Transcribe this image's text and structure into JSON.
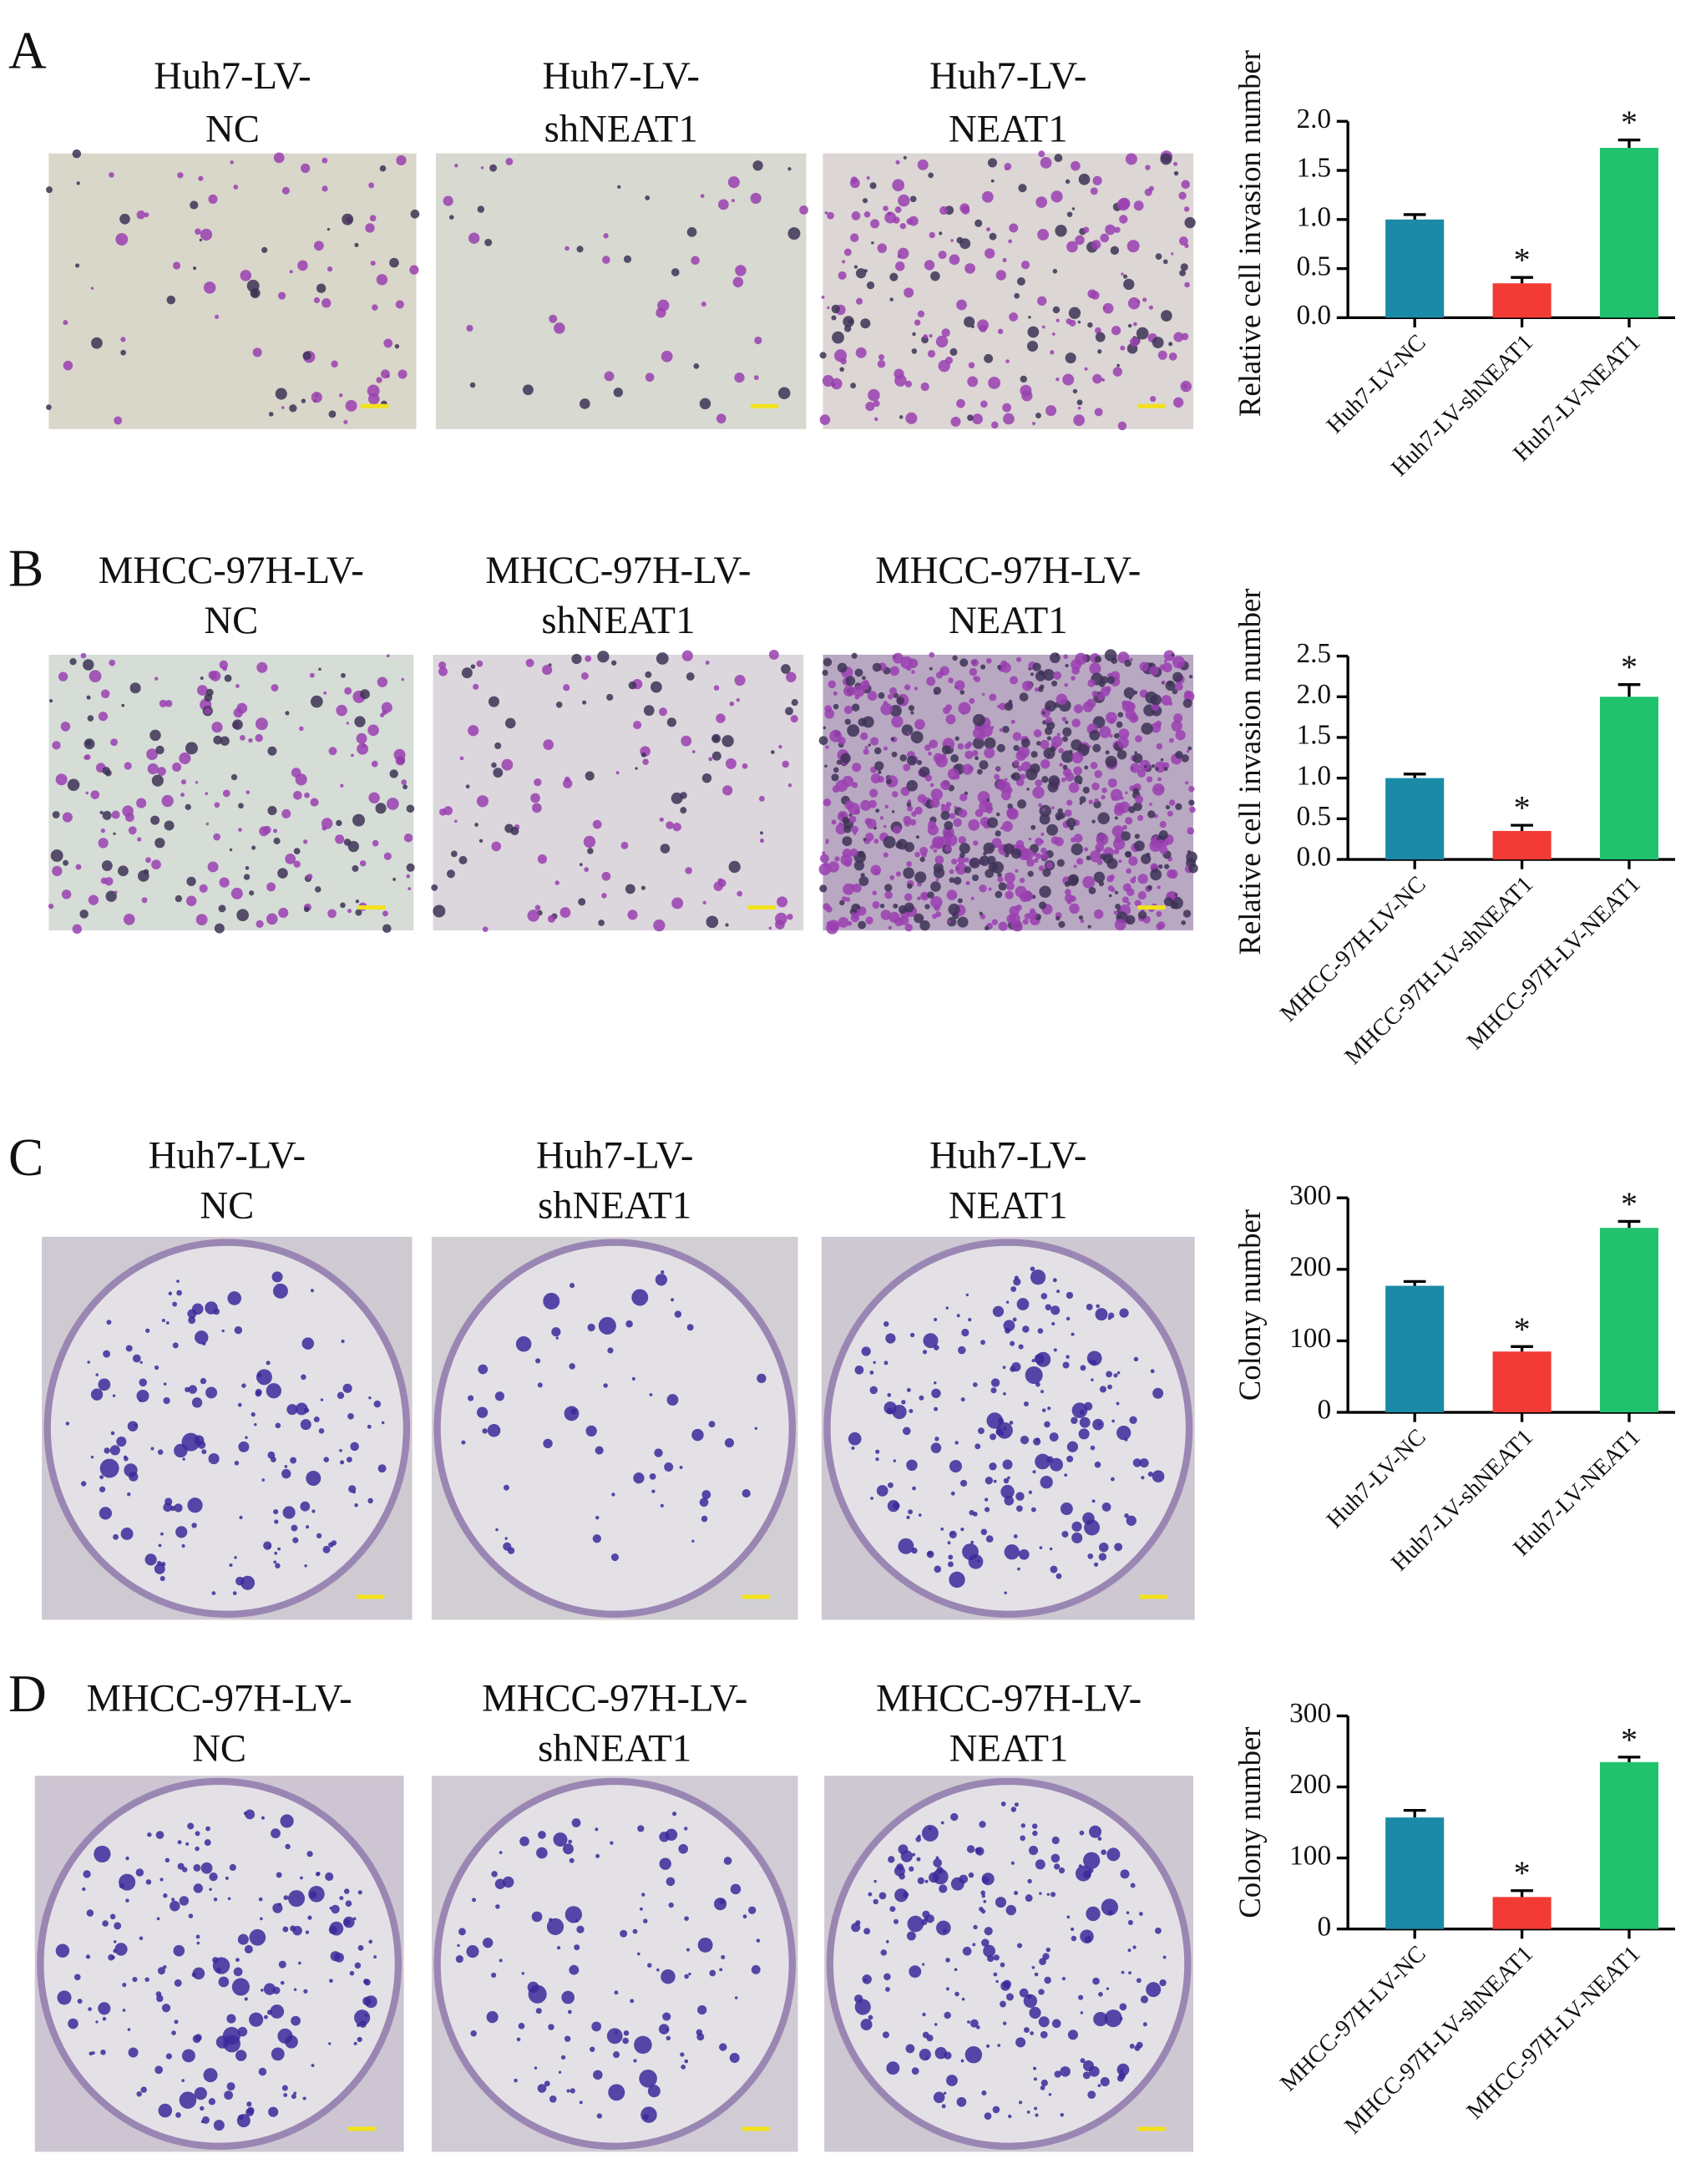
{
  "panels": [
    {
      "letter": "A",
      "image_titles": [
        [
          "Huh7-LV-",
          "NC"
        ],
        [
          "Huh7-LV-",
          "shNEAT1"
        ],
        [
          "Huh7-LV-",
          "NEAT1"
        ]
      ]
    },
    {
      "letter": "B",
      "image_titles": [
        [
          "MHCC-97H-LV-",
          "NC"
        ],
        [
          "MHCC-97H-LV-",
          "shNEAT1"
        ],
        [
          "MHCC-97H-LV-",
          "NEAT1"
        ]
      ]
    },
    {
      "letter": "C",
      "image_titles": [
        [
          "Huh7-LV-",
          "NC"
        ],
        [
          "Huh7-LV-",
          "shNEAT1"
        ],
        [
          "Huh7-LV-",
          "NEAT1"
        ]
      ]
    },
    {
      "letter": "D",
      "image_titles": [
        [
          "MHCC-97H-LV-",
          "NC"
        ],
        [
          "MHCC-97H-LV-",
          "shNEAT1"
        ],
        [
          "MHCC-97H-LV-",
          "NEAT1"
        ]
      ]
    }
  ],
  "chart_data": [
    {
      "type": "bar",
      "y_label": "Relative cell invasion number",
      "categories": [
        "Huh7-LV-NC",
        "Huh7-LV-shNEAT1",
        "Huh7-LV-NEAT1"
      ],
      "values": [
        1.0,
        0.35,
        1.73
      ],
      "errors": [
        0.05,
        0.06,
        0.08
      ],
      "colors": [
        "#1a8aa6",
        "#f23b34",
        "#21c26d"
      ],
      "annotations": [
        {
          "index": 1,
          "text": "*"
        },
        {
          "index": 2,
          "text": "*"
        }
      ],
      "ylim": [
        0,
        2
      ],
      "yticks": [
        {
          "value": 0,
          "label": "0.0"
        },
        0.5,
        {
          "value": 1,
          "label": "1.0"
        },
        1.5,
        {
          "value": 2,
          "label": "2.0"
        }
      ]
    },
    {
      "type": "bar",
      "y_label": "Relative cell invasion number",
      "categories": [
        "MHCC-97H-LV-NC",
        "MHCC-97H-LV-shNEAT1",
        "MHCC-97H-LV-NEAT1"
      ],
      "values": [
        1.0,
        0.35,
        2.0
      ],
      "errors": [
        0.05,
        0.07,
        0.15
      ],
      "colors": [
        "#1a8aa6",
        "#f23b34",
        "#21c26d"
      ],
      "annotations": [
        {
          "index": 1,
          "text": "*"
        },
        {
          "index": 2,
          "text": "*"
        }
      ],
      "ylim": [
        0,
        2.5
      ],
      "yticks": [
        {
          "value": 0,
          "label": "0.0"
        },
        0.5,
        {
          "value": 1,
          "label": "1.0"
        },
        1.5,
        {
          "value": 2,
          "label": "2.0"
        },
        2.5
      ]
    },
    {
      "type": "bar",
      "y_label": "Colony number",
      "categories": [
        "Huh7-LV-NC",
        "Huh7-LV-shNEAT1",
        "Huh7-LV-NEAT1"
      ],
      "values": [
        177,
        85,
        258
      ],
      "errors": [
        6,
        7,
        9
      ],
      "colors": [
        "#1a8aa6",
        "#f23b34",
        "#21c26d"
      ],
      "annotations": [
        {
          "index": 1,
          "text": "*"
        },
        {
          "index": 2,
          "text": "*"
        }
      ],
      "ylim": [
        0,
        300
      ],
      "yticks": [
        0,
        100,
        200,
        300
      ]
    },
    {
      "type": "bar",
      "y_label": "Colony number",
      "categories": [
        "MHCC-97H-LV-NC",
        "MHCC-97H-LV-shNEAT1",
        "MHCC-97H-LV-NEAT1"
      ],
      "values": [
        157,
        45,
        235
      ],
      "errors": [
        10,
        9,
        7
      ],
      "colors": [
        "#1a8aa6",
        "#f23b34",
        "#21c26d"
      ],
      "annotations": [
        {
          "index": 1,
          "text": "*"
        },
        {
          "index": 2,
          "text": "*"
        }
      ],
      "ylim": [
        0,
        300
      ],
      "yticks": [
        0,
        100,
        200,
        300
      ]
    }
  ]
}
